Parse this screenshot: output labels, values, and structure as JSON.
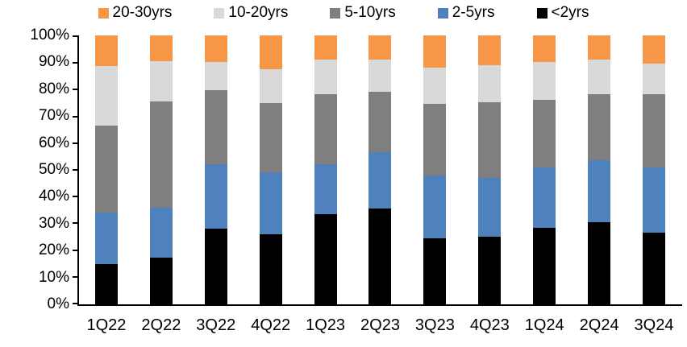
{
  "legend": {
    "items": [
      {
        "label": "20-30yrs",
        "color": "#F79646"
      },
      {
        "label": "10-20yrs",
        "color": "#D9D9D9"
      },
      {
        "label": "5-10yrs",
        "color": "#7F7F7F"
      },
      {
        "label": "2-5yrs",
        "color": "#4F81BD"
      },
      {
        "label": "<2yrs",
        "color": "#000000"
      }
    ]
  },
  "chart_data": {
    "type": "bar",
    "stacked": true,
    "percent_stacked": true,
    "title": "",
    "xlabel": "",
    "ylabel": "",
    "ylim": [
      0,
      100
    ],
    "grid": false,
    "legend_position": "top",
    "categories": [
      "1Q22",
      "2Q22",
      "3Q22",
      "4Q22",
      "1Q23",
      "2Q23",
      "3Q23",
      "4Q23",
      "1Q24",
      "2Q24",
      "3Q24"
    ],
    "y_ticks": [
      "0%",
      "10%",
      "20%",
      "30%",
      "40%",
      "50%",
      "60%",
      "70%",
      "80%",
      "90%",
      "100%"
    ],
    "series": [
      {
        "name": "<2yrs",
        "color": "#000000",
        "values": [
          15,
          17.5,
          28,
          26,
          33.5,
          35.5,
          24.5,
          25,
          28.5,
          30.5,
          26.5
        ]
      },
      {
        "name": "2-5yrs",
        "color": "#4F81BD",
        "values": [
          19,
          18.5,
          24,
          23,
          18.5,
          21,
          23.5,
          22,
          22.5,
          23,
          24.5
        ]
      },
      {
        "name": "5-10yrs",
        "color": "#7F7F7F",
        "values": [
          32.5,
          39.5,
          27.5,
          26,
          26,
          22.5,
          26.5,
          28,
          25,
          24.5,
          27
        ]
      },
      {
        "name": "10-20yrs",
        "color": "#D9D9D9",
        "values": [
          22,
          15,
          10.5,
          12.5,
          13,
          12,
          13.5,
          14,
          14,
          13,
          11.5
        ]
      },
      {
        "name": "20-30yrs",
        "color": "#F79646",
        "values": [
          11.5,
          9.5,
          10,
          12.5,
          9,
          9,
          12,
          11,
          10,
          9,
          10.5
        ]
      }
    ]
  }
}
